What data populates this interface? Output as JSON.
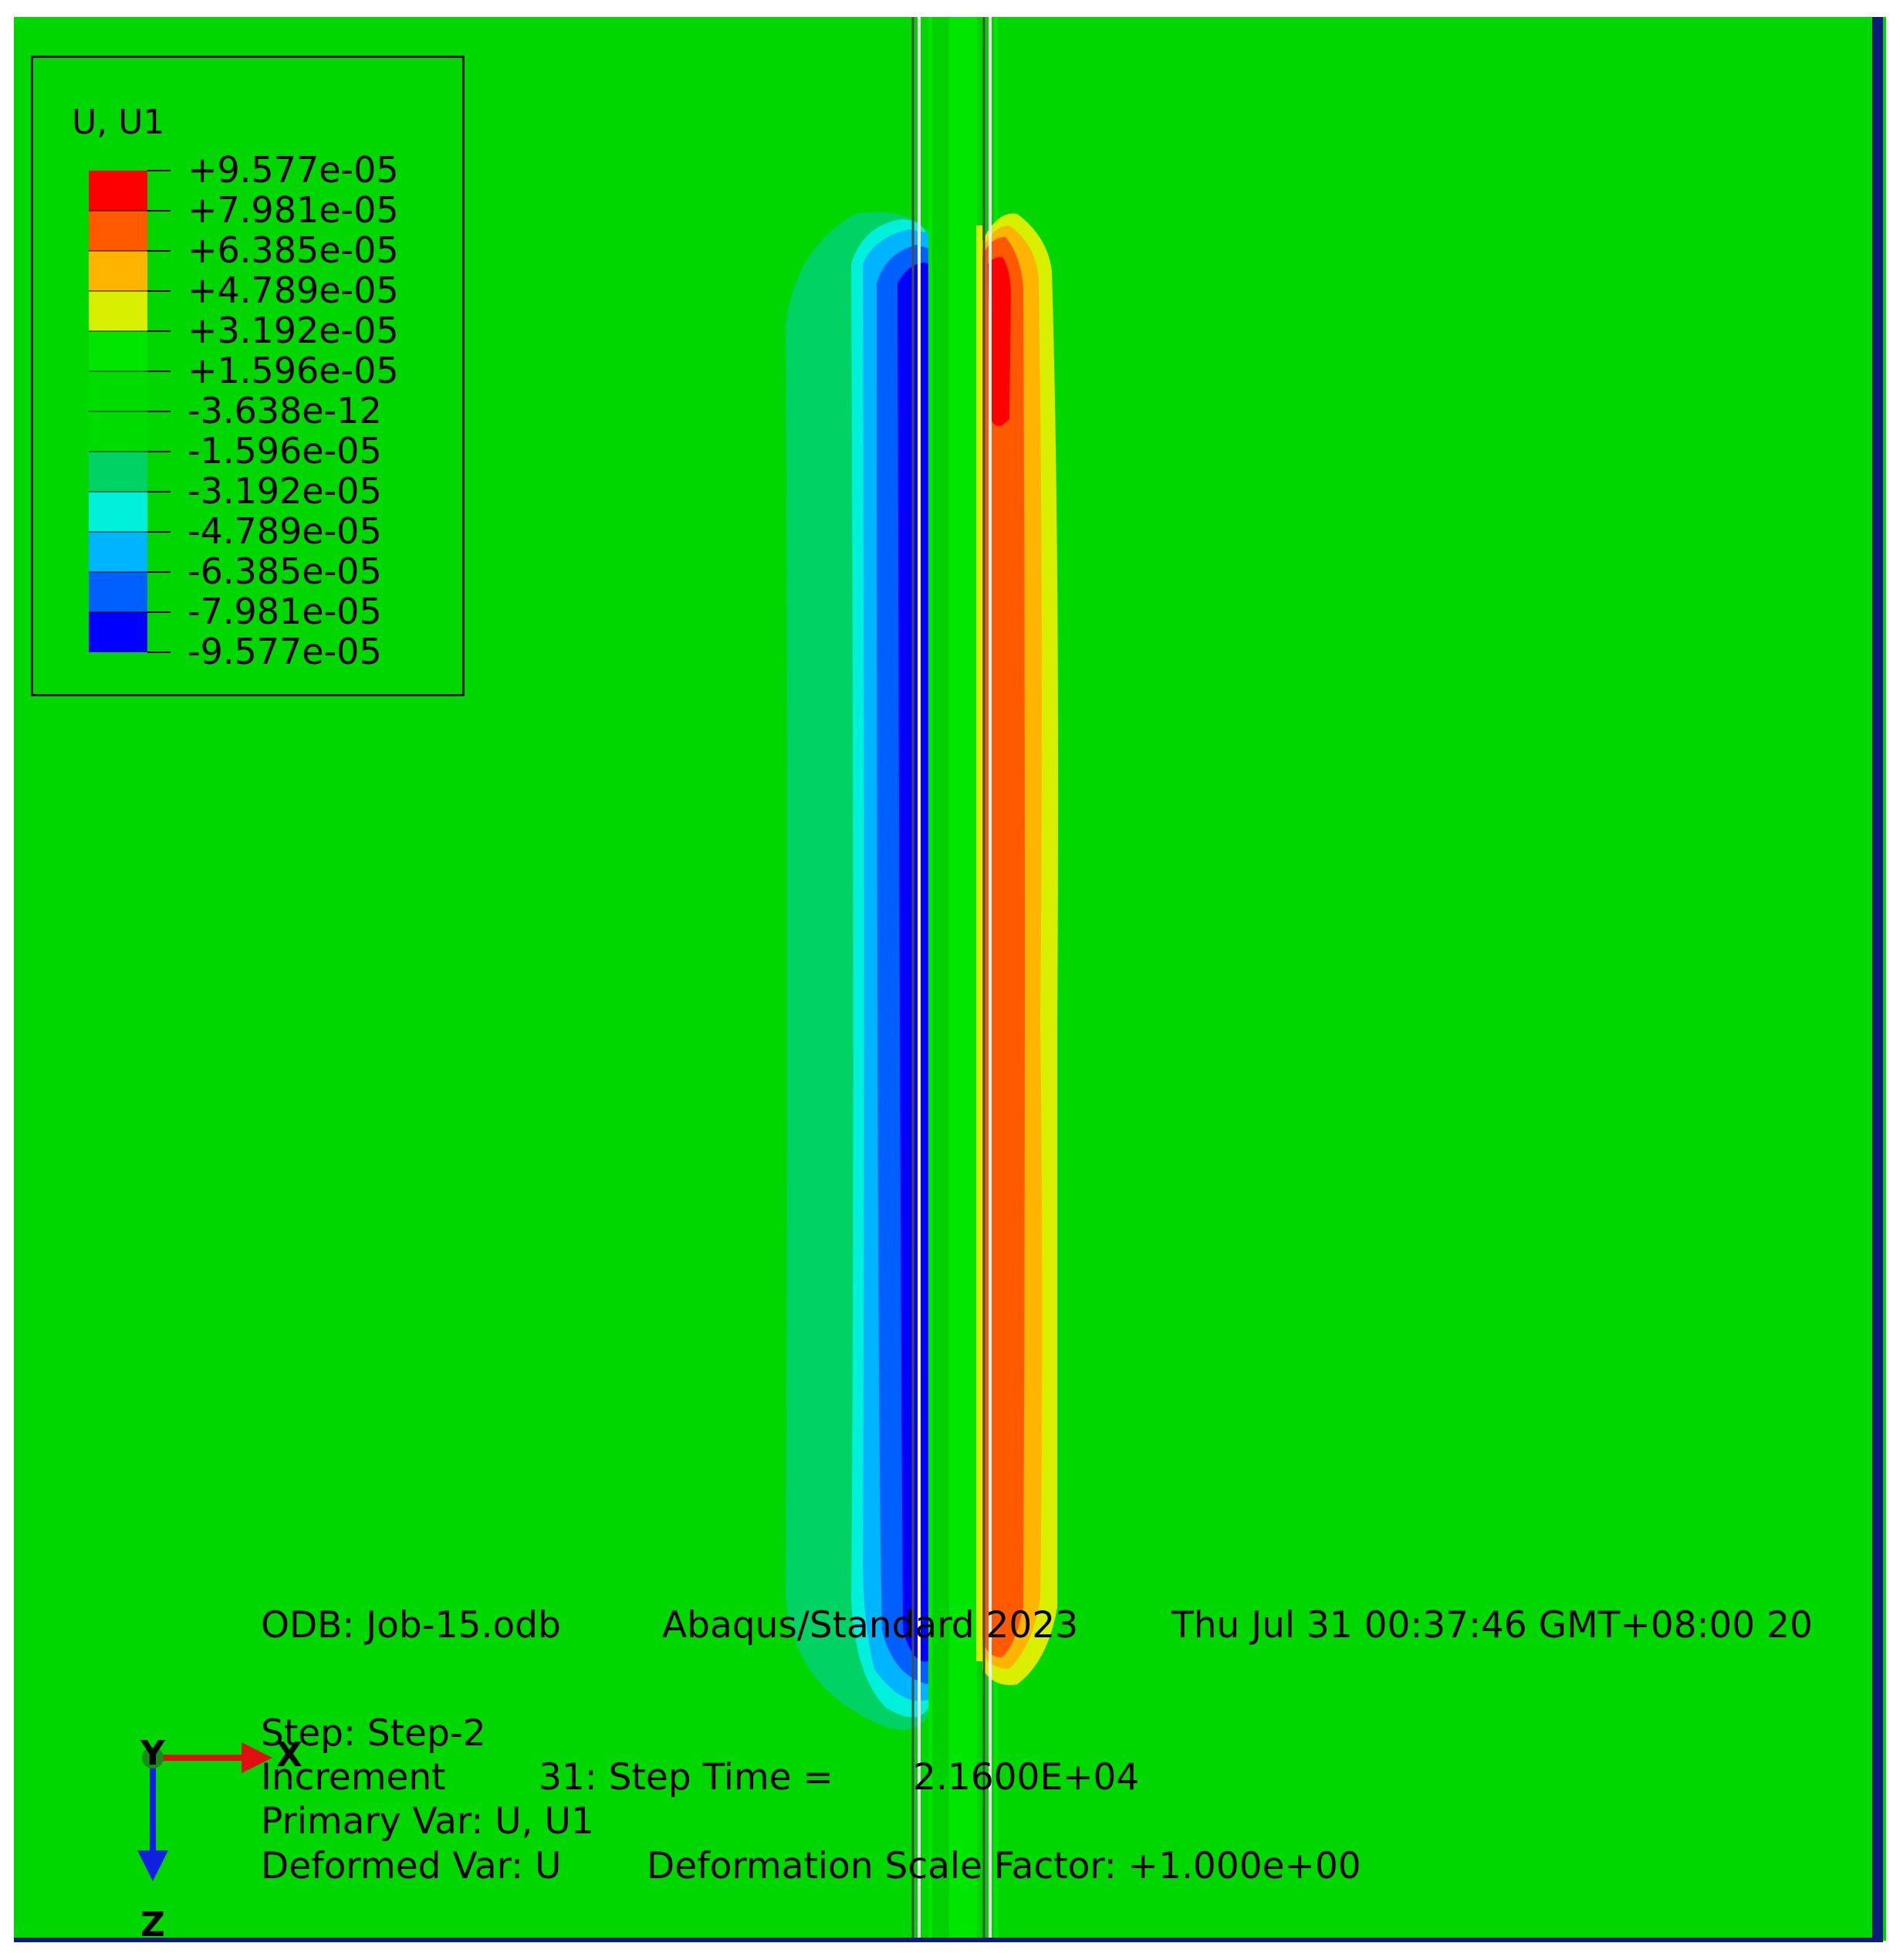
{
  "legend": {
    "title": "U, U1",
    "colors": [
      "#ff0000",
      "#ff5a00",
      "#ffb400",
      "#d8f000",
      "#00e600",
      "#00dc00",
      "#00dc00",
      "#00d264",
      "#00f0dc",
      "#00b4ff",
      "#0060ff",
      "#0000ff"
    ],
    "levels": [
      "+9.577e-05",
      "+7.981e-05",
      "+6.385e-05",
      "+4.789e-05",
      "+3.192e-05",
      "+1.596e-05",
      "-3.638e-12",
      "-1.596e-05",
      "-3.192e-05",
      "-4.789e-05",
      "-6.385e-05",
      "-7.981e-05",
      "-9.577e-05"
    ]
  },
  "info": {
    "odb": "ODB: Job-15.odb",
    "solver": "Abaqus/Standard 2023",
    "datetime": "Thu Jul 31 00:37:46 GMT+08:00 20",
    "step": "Step: Step-2",
    "increment_label": "Increment",
    "increment_value": "31: Step Time =",
    "step_time": "2.1600E+04",
    "primary_var": "Primary Var: U, U1",
    "deformed_var": "Deformed Var: U",
    "scale_factor": "Deformation Scale Factor: +1.000e+00"
  },
  "triad": {
    "x": "X",
    "y": "Y",
    "z": "Z",
    "x_color": "#e01010",
    "y_color": "#1a8a1a",
    "z_color": "#1020e0"
  },
  "colors": {
    "background": "#00d600",
    "border": "#0c1e7a"
  }
}
